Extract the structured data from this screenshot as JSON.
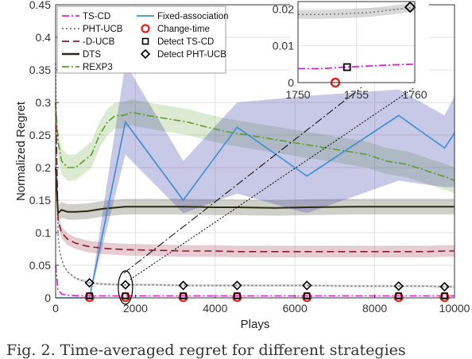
{
  "caption": "Fig. 2. Time-averaged regret for different strategies",
  "chart_data": {
    "type": "line",
    "title": "",
    "xlabel": "Plays",
    "ylabel": "Normalized Regret",
    "xlim": [
      0,
      10000
    ],
    "ylim": [
      0,
      0.45
    ],
    "xticks": [
      0,
      2000,
      4000,
      6000,
      8000,
      10000
    ],
    "yticks": [
      0,
      0.05,
      0.1,
      0.15,
      0.2,
      0.25,
      0.3,
      0.35,
      0.4,
      0.45
    ],
    "xtick_labels": [
      "0",
      "2000",
      "4000",
      "6000",
      "8000",
      "10000"
    ],
    "ytick_labels": [
      "0",
      "0.05",
      "0.1",
      "0.15",
      "0.2",
      "0.25",
      "0.3",
      "0.35",
      "0.4",
      "0.45"
    ],
    "grid": true,
    "legend_position": "top-left",
    "change_times": [
      850,
      1750,
      3200,
      4550,
      6300,
      8600,
      9750
    ],
    "series": [
      {
        "name": "TS-CD",
        "color": "#e020d8",
        "style": "dashdot",
        "x": [
          0,
          60,
          150,
          300,
          600,
          850,
          1200,
          1750,
          2500,
          3200,
          4000,
          4550,
          5500,
          6300,
          7500,
          8600,
          9300,
          9750,
          10000
        ],
        "y": [
          0.05,
          0.012,
          0.006,
          0.004,
          0.003,
          0.003,
          0.003,
          0.003,
          0.003,
          0.003,
          0.003,
          0.003,
          0.003,
          0.003,
          0.003,
          0.003,
          0.003,
          0.003,
          0.003
        ]
      },
      {
        "name": "PHT-UCB",
        "color": "#777777",
        "style": "dotted",
        "x": [
          0,
          30,
          60,
          100,
          200,
          300,
          500,
          700,
          850,
          1200,
          1750,
          2500,
          3200,
          4000,
          4550,
          5500,
          6300,
          7500,
          8600,
          9300,
          9750,
          10000
        ],
        "y": [
          0.36,
          0.2,
          0.1,
          0.07,
          0.05,
          0.04,
          0.03,
          0.026,
          0.023,
          0.021,
          0.02,
          0.02,
          0.019,
          0.019,
          0.019,
          0.019,
          0.019,
          0.018,
          0.018,
          0.018,
          0.017,
          0.017
        ],
        "band": [
          0.002,
          0.002
        ]
      },
      {
        "name": "-D-UCB",
        "color": "#8b1a2e",
        "style": "dashed",
        "x": [
          0,
          60,
          150,
          300,
          500,
          800,
          1200,
          1750,
          2500,
          3200,
          4000,
          4550,
          5500,
          6300,
          7500,
          8600,
          9300,
          9750,
          10000
        ],
        "y": [
          0.3,
          0.12,
          0.1,
          0.09,
          0.084,
          0.079,
          0.076,
          0.074,
          0.073,
          0.072,
          0.072,
          0.071,
          0.071,
          0.071,
          0.071,
          0.071,
          0.071,
          0.072,
          0.072
        ],
        "band": [
          0.009,
          0.009
        ]
      },
      {
        "name": "DTS",
        "color": "#2b2b10",
        "style": "solid",
        "x": [
          0,
          60,
          150,
          300,
          500,
          800,
          1200,
          1750,
          2500,
          3200,
          4000,
          4550,
          5500,
          6300,
          7500,
          8600,
          9300,
          9750,
          10000
        ],
        "y": [
          0.2,
          0.13,
          0.135,
          0.132,
          0.132,
          0.133,
          0.137,
          0.14,
          0.14,
          0.14,
          0.139,
          0.139,
          0.138,
          0.139,
          0.14,
          0.14,
          0.14,
          0.14,
          0.14
        ],
        "band": [
          0.012,
          0.012
        ]
      },
      {
        "name": "REXP3",
        "color": "#5a9e2a",
        "style": "dashdot",
        "x": [
          0,
          60,
          150,
          300,
          500,
          700,
          900,
          1100,
          1300,
          1500,
          1700,
          1900,
          2300,
          2800,
          3300,
          3800,
          4300,
          4800,
          5300,
          5800,
          6300,
          6800,
          7300,
          7800,
          8300,
          8800,
          9300,
          9800,
          10000
        ],
        "y": [
          0.3,
          0.24,
          0.21,
          0.2,
          0.2,
          0.21,
          0.22,
          0.25,
          0.27,
          0.28,
          0.28,
          0.285,
          0.28,
          0.275,
          0.27,
          0.262,
          0.255,
          0.25,
          0.245,
          0.24,
          0.235,
          0.23,
          0.225,
          0.22,
          0.21,
          0.205,
          0.195,
          0.185,
          0.18
        ],
        "band": [
          0.02,
          0.02
        ]
      },
      {
        "name": "Fixed-association",
        "color": "#3b8ed4",
        "style": "solid",
        "x": [
          0,
          850,
          1750,
          3200,
          4550,
          6300,
          8600,
          9750,
          10000
        ],
        "y": [
          0.0,
          0.0,
          0.27,
          0.15,
          0.262,
          0.187,
          0.28,
          0.23,
          0.253
        ],
        "band_upper": [
          0.0,
          0.0,
          0.36,
          0.21,
          0.3,
          0.31,
          0.32,
          0.28,
          0.31
        ],
        "band_lower": [
          0.0,
          0.0,
          0.22,
          0.13,
          0.16,
          0.13,
          0.18,
          0.17,
          0.17
        ]
      }
    ],
    "markers": [
      {
        "name": "Change-time",
        "shape": "circle",
        "color": "#e3201a"
      },
      {
        "name": "Detect TS-CD",
        "shape": "square",
        "color": "#000000"
      },
      {
        "name": "Detect PHT-UCB",
        "shape": "diamond",
        "color": "#000000"
      }
    ],
    "inset": {
      "xlim": [
        1750,
        1760
      ],
      "ylim": [
        0,
        0.022
      ],
      "xticks": [
        1750,
        1755,
        1760
      ],
      "yticks": [
        0,
        0.01,
        0.02
      ],
      "xtick_labels": [
        "1750",
        "1755",
        "1760"
      ],
      "ytick_labels": [
        "0",
        "0.01",
        "0.02"
      ],
      "pht_line": {
        "x": [
          1750,
          1752,
          1754,
          1756,
          1758,
          1760
        ],
        "y": [
          0.0185,
          0.0185,
          0.0187,
          0.019,
          0.0197,
          0.0205
        ]
      },
      "pht_band": [
        0.0012,
        0.0012
      ],
      "tscd_line": {
        "x": [
          1750,
          1752,
          1754,
          1756,
          1758,
          1760
        ],
        "y": [
          0.0038,
          0.0038,
          0.0042,
          0.0045,
          0.0048,
          0.005
        ]
      },
      "change_marker": {
        "x": 1753.2,
        "y": 0.0
      },
      "tscd_detect": {
        "x": 1754.2,
        "y": 0.0042
      },
      "pht_detect": {
        "x": 1759.6,
        "y": 0.0205
      }
    }
  }
}
